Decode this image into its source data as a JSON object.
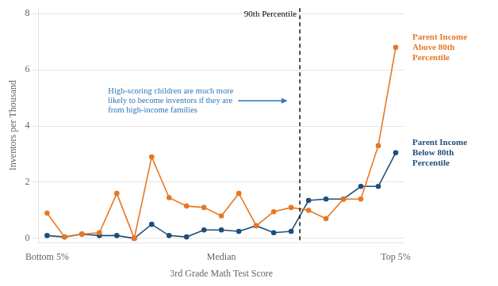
{
  "chart_data": {
    "type": "line",
    "xlabel": "3rd Grade Math Test Score",
    "ylabel": "Inventors per Thousand",
    "x": [
      0,
      1,
      2,
      3,
      4,
      5,
      6,
      7,
      8,
      9,
      10,
      11,
      12,
      13,
      14,
      15,
      16,
      17,
      18,
      19,
      20
    ],
    "xlim": [
      -0.5,
      20.5
    ],
    "xticks": [
      {
        "value": 0,
        "label": "Bottom 5%"
      },
      {
        "value": 10,
        "label": "Median"
      },
      {
        "value": 20,
        "label": "Top 5%"
      }
    ],
    "ylim": [
      -0.15,
      8.2
    ],
    "yticks": [
      0,
      2,
      4,
      6,
      8
    ],
    "grid": "y",
    "series": [
      {
        "name": "Parent Income Above 80th Percentile",
        "color": "#E87722",
        "marker": "circle",
        "values": [
          0.9,
          0.05,
          0.15,
          0.2,
          1.6,
          0.0,
          2.9,
          1.45,
          1.15,
          1.1,
          0.8,
          1.6,
          0.45,
          0.95,
          1.1,
          1.0,
          0.7,
          1.4,
          1.4,
          3.3,
          6.8
        ]
      },
      {
        "name": "Parent Income Below 80th Percentile",
        "color": "#1F4E79",
        "marker": "circle",
        "values": [
          0.1,
          0.05,
          0.15,
          0.1,
          0.1,
          0.0,
          0.5,
          0.1,
          0.05,
          0.3,
          0.3,
          0.25,
          0.45,
          0.2,
          0.25,
          1.35,
          1.4,
          1.4,
          1.85,
          1.85,
          3.05
        ]
      }
    ],
    "annotations": [
      {
        "type": "vline",
        "x": 14.5,
        "text": "90th Percentile",
        "color": "black",
        "line_style": "dashed"
      },
      {
        "type": "arrow",
        "text": "High-scoring children are much more\nlikely to become inventors if they are\nfrom high-income families",
        "x": 3.5,
        "y": 4.9,
        "arrow_x": 13.8,
        "arrow_y": 4.9,
        "color": "#2E75B6"
      }
    ]
  }
}
